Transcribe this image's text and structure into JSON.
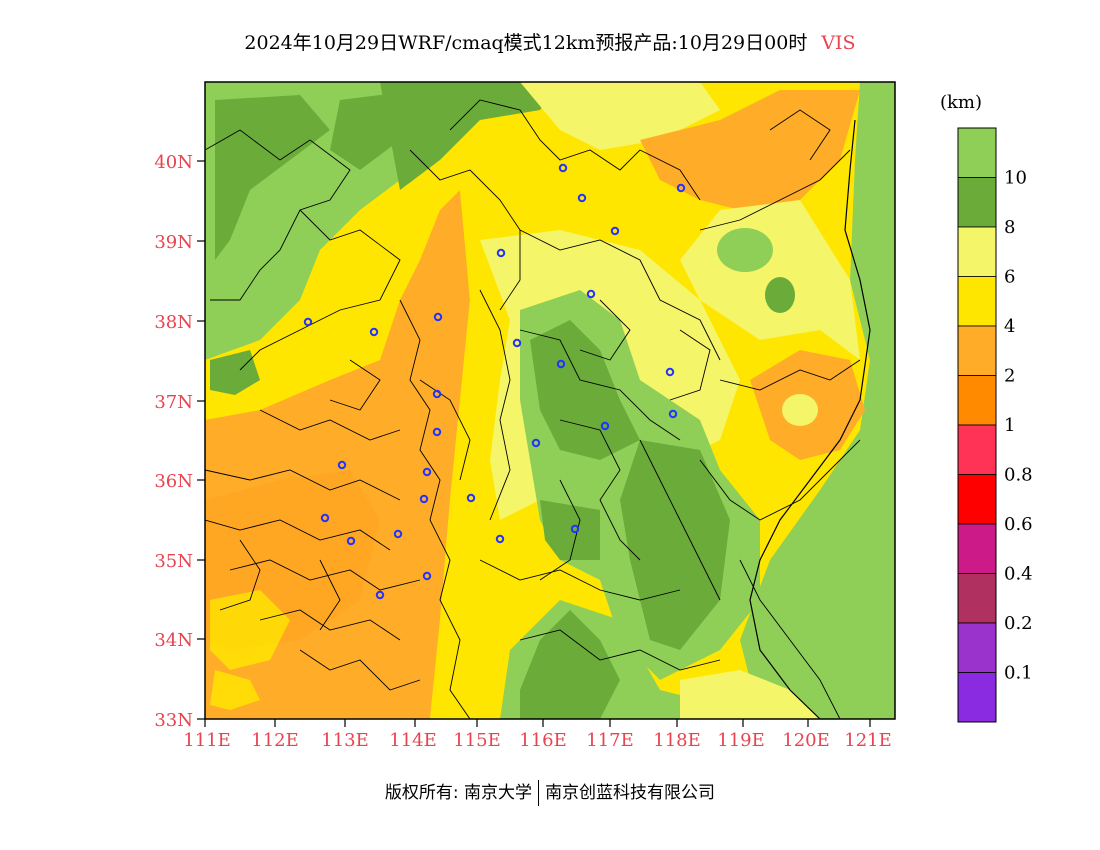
{
  "title": {
    "main": "2024年10月29日WRF/cmaq模式12km预报产品:10月29日00时",
    "variable": "VIS"
  },
  "legend": {
    "unit": "(km)",
    "levels": [
      {
        "label": "10",
        "color": "#8fcf57"
      },
      {
        "label": "8",
        "color": "#6aab3a"
      },
      {
        "label": "6",
        "color": "#f5f56a"
      },
      {
        "label": "4",
        "color": "#ffe600"
      },
      {
        "label": "2",
        "color": "#ffad28"
      },
      {
        "label": "1",
        "color": "#ff8a00"
      },
      {
        "label": "0.8",
        "color": "#ff3355"
      },
      {
        "label": "0.6",
        "color": "#ff0000"
      },
      {
        "label": "0.4",
        "color": "#cc1a88"
      },
      {
        "label": "0.2",
        "color": "#b03060"
      },
      {
        "label": "0.1",
        "color": "#9933cc"
      },
      {
        "label": "",
        "color": "#8a2be2"
      }
    ]
  },
  "axes": {
    "x_ticks": [
      "111E",
      "112E",
      "113E",
      "114E",
      "115E",
      "116E",
      "117E",
      "118E",
      "119E",
      "120E",
      "121E"
    ],
    "y_ticks": [
      "40N",
      "39N",
      "38N",
      "37N",
      "36N",
      "35N",
      "34N",
      "33N"
    ]
  },
  "footer": {
    "left": "版权所有: 南京大学",
    "right": "南京创蓝科技有限公司"
  },
  "colors": {
    "axis_label": "#e8434f",
    "city_marker": "#2233ff"
  }
}
